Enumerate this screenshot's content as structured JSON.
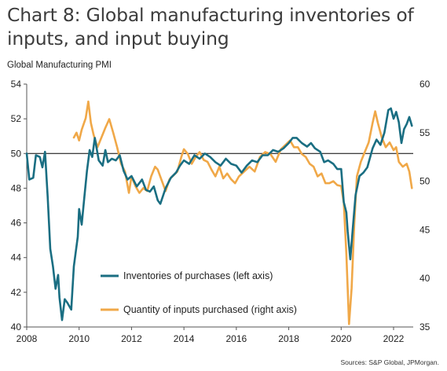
{
  "chart_data": {
    "type": "line",
    "title": "Chart 8: Global manufacturing inventories of inputs, and input buying",
    "left_axis_label": "Global Manufacturing PMI",
    "source": "Sources: S&P Global, JPMorgan.",
    "x_ticks": [
      "2008",
      "2010",
      "2012",
      "2014",
      "2016",
      "2018",
      "2020",
      "2022"
    ],
    "x_range": [
      2008.0,
      2022.75
    ],
    "ylim_left": [
      40,
      54
    ],
    "yticks_left": [
      "40",
      "42",
      "44",
      "46",
      "48",
      "50",
      "52",
      "54"
    ],
    "ylim_right": [
      35,
      60
    ],
    "yticks_right": [
      "35",
      "40",
      "45",
      "50",
      "55",
      "60"
    ],
    "reference_line_left": 50,
    "legend_position": "lower-center",
    "colors": {
      "inventories": "#1a6e82",
      "quantity": "#f0a848",
      "axis": "#555555",
      "reference": "#000000"
    },
    "series": [
      {
        "name": "Inventories of purchases (left axis)",
        "axis": "left",
        "points": [
          [
            2008.0,
            50.0
          ],
          [
            2008.1,
            48.5
          ],
          [
            2008.25,
            48.6
          ],
          [
            2008.35,
            49.9
          ],
          [
            2008.5,
            49.8
          ],
          [
            2008.6,
            49.2
          ],
          [
            2008.7,
            50.1
          ],
          [
            2008.8,
            47.5
          ],
          [
            2008.9,
            44.5
          ],
          [
            2009.0,
            43.5
          ],
          [
            2009.1,
            42.2
          ],
          [
            2009.2,
            43.0
          ],
          [
            2009.25,
            41.7
          ],
          [
            2009.35,
            40.4
          ],
          [
            2009.45,
            41.6
          ],
          [
            2009.55,
            41.4
          ],
          [
            2009.7,
            41.0
          ],
          [
            2009.8,
            43.5
          ],
          [
            2009.95,
            45.2
          ],
          [
            2010.0,
            46.8
          ],
          [
            2010.1,
            45.9
          ],
          [
            2010.2,
            47.5
          ],
          [
            2010.3,
            49.0
          ],
          [
            2010.4,
            50.2
          ],
          [
            2010.5,
            49.8
          ],
          [
            2010.6,
            50.9
          ],
          [
            2010.75,
            49.6
          ],
          [
            2010.9,
            49.3
          ],
          [
            2011.0,
            50.2
          ],
          [
            2011.1,
            49.5
          ],
          [
            2011.25,
            49.7
          ],
          [
            2011.4,
            49.6
          ],
          [
            2011.55,
            49.9
          ],
          [
            2011.7,
            49.0
          ],
          [
            2011.85,
            48.5
          ],
          [
            2012.0,
            48.7
          ],
          [
            2012.2,
            48.1
          ],
          [
            2012.4,
            48.5
          ],
          [
            2012.55,
            47.9
          ],
          [
            2012.7,
            47.8
          ],
          [
            2012.85,
            48.1
          ],
          [
            2013.0,
            47.3
          ],
          [
            2013.1,
            47.1
          ],
          [
            2013.3,
            48.0
          ],
          [
            2013.5,
            48.6
          ],
          [
            2013.7,
            48.9
          ],
          [
            2013.85,
            49.3
          ],
          [
            2014.0,
            49.6
          ],
          [
            2014.2,
            49.4
          ],
          [
            2014.4,
            49.9
          ],
          [
            2014.6,
            49.7
          ],
          [
            2014.8,
            50.0
          ],
          [
            2015.0,
            49.8
          ],
          [
            2015.2,
            49.5
          ],
          [
            2015.4,
            49.3
          ],
          [
            2015.6,
            49.7
          ],
          [
            2015.8,
            49.4
          ],
          [
            2016.0,
            49.3
          ],
          [
            2016.2,
            48.9
          ],
          [
            2016.4,
            49.3
          ],
          [
            2016.6,
            49.6
          ],
          [
            2016.8,
            49.5
          ],
          [
            2017.0,
            49.9
          ],
          [
            2017.2,
            49.9
          ],
          [
            2017.4,
            50.2
          ],
          [
            2017.6,
            50.1
          ],
          [
            2017.8,
            50.3
          ],
          [
            2018.0,
            50.6
          ],
          [
            2018.15,
            50.9
          ],
          [
            2018.3,
            50.9
          ],
          [
            2018.5,
            50.6
          ],
          [
            2018.7,
            50.4
          ],
          [
            2018.85,
            50.6
          ],
          [
            2019.0,
            50.3
          ],
          [
            2019.2,
            50.1
          ],
          [
            2019.35,
            49.5
          ],
          [
            2019.5,
            49.6
          ],
          [
            2019.7,
            49.4
          ],
          [
            2019.85,
            49.1
          ],
          [
            2020.0,
            49.1
          ],
          [
            2020.1,
            47.2
          ],
          [
            2020.2,
            46.6
          ],
          [
            2020.25,
            45.5
          ],
          [
            2020.35,
            43.9
          ],
          [
            2020.45,
            45.8
          ],
          [
            2020.55,
            47.6
          ],
          [
            2020.7,
            48.7
          ],
          [
            2020.85,
            48.9
          ],
          [
            2021.0,
            49.2
          ],
          [
            2021.2,
            50.3
          ],
          [
            2021.35,
            50.8
          ],
          [
            2021.5,
            50.5
          ],
          [
            2021.65,
            51.2
          ],
          [
            2021.8,
            52.5
          ],
          [
            2021.9,
            52.6
          ],
          [
            2022.0,
            52.0
          ],
          [
            2022.1,
            52.4
          ],
          [
            2022.2,
            51.8
          ],
          [
            2022.3,
            50.6
          ],
          [
            2022.4,
            51.4
          ],
          [
            2022.5,
            51.7
          ],
          [
            2022.6,
            52.1
          ],
          [
            2022.7,
            51.6
          ]
        ]
      },
      {
        "name": "Quantity of inputs purchased (right axis)",
        "axis": "right",
        "points": [
          [
            2009.8,
            54.5
          ],
          [
            2009.9,
            55.0
          ],
          [
            2010.0,
            54.2
          ],
          [
            2010.1,
            55.3
          ],
          [
            2010.25,
            56.5
          ],
          [
            2010.35,
            58.2
          ],
          [
            2010.45,
            56.0
          ],
          [
            2010.55,
            54.8
          ],
          [
            2010.7,
            53.5
          ],
          [
            2010.85,
            54.5
          ],
          [
            2011.0,
            55.5
          ],
          [
            2011.15,
            56.4
          ],
          [
            2011.3,
            55.0
          ],
          [
            2011.45,
            53.5
          ],
          [
            2011.6,
            51.8
          ],
          [
            2011.75,
            51.0
          ],
          [
            2011.9,
            48.8
          ],
          [
            2012.0,
            50.5
          ],
          [
            2012.15,
            49.5
          ],
          [
            2012.3,
            48.8
          ],
          [
            2012.45,
            49.3
          ],
          [
            2012.6,
            49.0
          ],
          [
            2012.75,
            50.5
          ],
          [
            2012.9,
            51.5
          ],
          [
            2013.0,
            51.2
          ],
          [
            2013.15,
            50.1
          ],
          [
            2013.3,
            49.0
          ],
          [
            2013.45,
            50.2
          ],
          [
            2013.6,
            50.6
          ],
          [
            2013.75,
            51.0
          ],
          [
            2013.9,
            52.5
          ],
          [
            2014.0,
            53.3
          ],
          [
            2014.15,
            52.8
          ],
          [
            2014.3,
            51.8
          ],
          [
            2014.45,
            52.5
          ],
          [
            2014.6,
            53.0
          ],
          [
            2014.75,
            52.2
          ],
          [
            2014.9,
            52.0
          ],
          [
            2015.05,
            51.2
          ],
          [
            2015.2,
            50.5
          ],
          [
            2015.35,
            51.5
          ],
          [
            2015.5,
            50.3
          ],
          [
            2015.65,
            50.8
          ],
          [
            2015.8,
            50.2
          ],
          [
            2015.95,
            49.8
          ],
          [
            2016.1,
            50.5
          ],
          [
            2016.3,
            51.0
          ],
          [
            2016.5,
            51.5
          ],
          [
            2016.7,
            51.0
          ],
          [
            2016.9,
            52.5
          ],
          [
            2017.1,
            53.0
          ],
          [
            2017.3,
            52.8
          ],
          [
            2017.5,
            52.0
          ],
          [
            2017.7,
            53.3
          ],
          [
            2017.9,
            53.8
          ],
          [
            2018.05,
            54.2
          ],
          [
            2018.2,
            53.5
          ],
          [
            2018.35,
            53.5
          ],
          [
            2018.5,
            52.8
          ],
          [
            2018.65,
            52.5
          ],
          [
            2018.8,
            51.8
          ],
          [
            2018.95,
            51.5
          ],
          [
            2019.1,
            50.5
          ],
          [
            2019.25,
            50.8
          ],
          [
            2019.4,
            49.8
          ],
          [
            2019.55,
            49.8
          ],
          [
            2019.7,
            50.0
          ],
          [
            2019.85,
            49.6
          ],
          [
            2020.0,
            49.5
          ],
          [
            2020.1,
            47.8
          ],
          [
            2020.2,
            42.5
          ],
          [
            2020.3,
            35.3
          ],
          [
            2020.4,
            39.0
          ],
          [
            2020.5,
            45.5
          ],
          [
            2020.6,
            50.5
          ],
          [
            2020.75,
            52.0
          ],
          [
            2020.9,
            53.0
          ],
          [
            2021.05,
            54.0
          ],
          [
            2021.2,
            56.0
          ],
          [
            2021.3,
            57.2
          ],
          [
            2021.4,
            56.0
          ],
          [
            2021.55,
            54.5
          ],
          [
            2021.7,
            53.5
          ],
          [
            2021.85,
            54.0
          ],
          [
            2022.0,
            53.2
          ],
          [
            2022.1,
            53.5
          ],
          [
            2022.2,
            52.0
          ],
          [
            2022.35,
            51.5
          ],
          [
            2022.5,
            51.8
          ],
          [
            2022.6,
            51.0
          ],
          [
            2022.7,
            49.3
          ]
        ]
      }
    ]
  }
}
